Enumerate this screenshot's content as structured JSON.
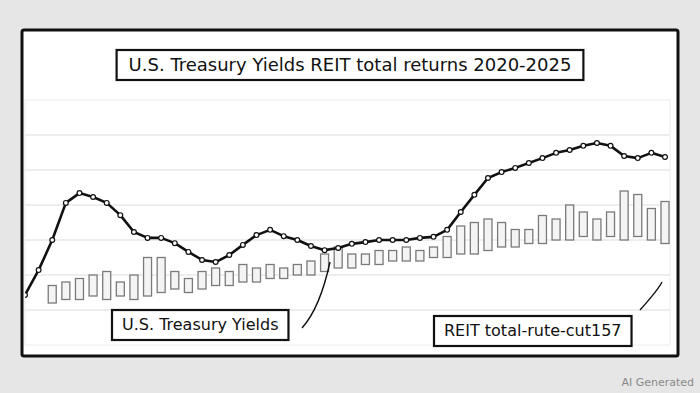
{
  "chart_data": {
    "type": "line",
    "title": "U.S. Treasury Yields REIT total returns 2020-2025",
    "annotations": [
      "U.S. Treasury Yields",
      "REIT total-rute-cut157"
    ],
    "footnote": "AI Generated",
    "categories": [
      null,
      null,
      null,
      null,
      null,
      null,
      null,
      null,
      null,
      null,
      null,
      null,
      null,
      null,
      null,
      null,
      null,
      null,
      null,
      null,
      null,
      null,
      null,
      null,
      null,
      null,
      null,
      null,
      null,
      null,
      null,
      null,
      null,
      null,
      null,
      null,
      null,
      null,
      null,
      null,
      null,
      null,
      null,
      null,
      null,
      null,
      null,
      null
    ],
    "ylim": [
      0,
      7
    ],
    "yticks": [
      1,
      2,
      3,
      4,
      5,
      6
    ],
    "grid": true,
    "tick_labels": false,
    "series": [
      {
        "type": "line",
        "color": "#111111",
        "marker": "circle",
        "line_style": "solid",
        "values": [
          1.43,
          2.14,
          3.0,
          4.06,
          4.34,
          4.23,
          4.06,
          3.71,
          3.23,
          3.06,
          3.06,
          2.91,
          2.66,
          2.43,
          2.37,
          2.57,
          2.86,
          3.14,
          3.29,
          3.11,
          3.0,
          2.83,
          2.71,
          2.77,
          2.89,
          2.94,
          3.0,
          3.0,
          3.0,
          3.06,
          3.09,
          3.29,
          3.8,
          4.29,
          4.77,
          4.94,
          5.06,
          5.2,
          5.34,
          5.49,
          5.57,
          5.69,
          5.77,
          5.69,
          5.4,
          5.34,
          5.49,
          5.37
        ]
      },
      {
        "type": "bar",
        "color": "#7a7a7a",
        "bottoms": [
          null,
          null,
          1.2,
          1.3,
          1.3,
          1.4,
          1.3,
          1.4,
          1.3,
          1.4,
          1.5,
          1.6,
          1.5,
          1.6,
          1.7,
          1.7,
          1.8,
          1.8,
          1.9,
          1.9,
          2.0,
          2.0,
          2.1,
          2.2,
          2.2,
          2.3,
          2.3,
          2.4,
          2.4,
          2.4,
          2.5,
          2.5,
          2.6,
          2.6,
          2.7,
          2.8,
          2.8,
          2.9,
          2.9,
          3.0,
          3.0,
          3.1,
          3.0,
          3.1,
          3.0,
          3.1,
          3.0,
          2.9
        ],
        "values": [
          null,
          null,
          1.7,
          1.8,
          1.9,
          2.0,
          2.1,
          1.8,
          2.0,
          2.5,
          2.5,
          2.1,
          1.9,
          2.1,
          2.2,
          2.1,
          2.3,
          2.2,
          2.3,
          2.2,
          2.3,
          2.4,
          2.6,
          2.8,
          2.6,
          2.6,
          2.7,
          2.7,
          2.8,
          2.7,
          2.8,
          3.1,
          3.4,
          3.5,
          3.6,
          3.5,
          3.3,
          3.3,
          3.7,
          3.6,
          4.0,
          3.8,
          3.6,
          3.8,
          4.4,
          4.3,
          3.9,
          4.1
        ]
      }
    ]
  }
}
